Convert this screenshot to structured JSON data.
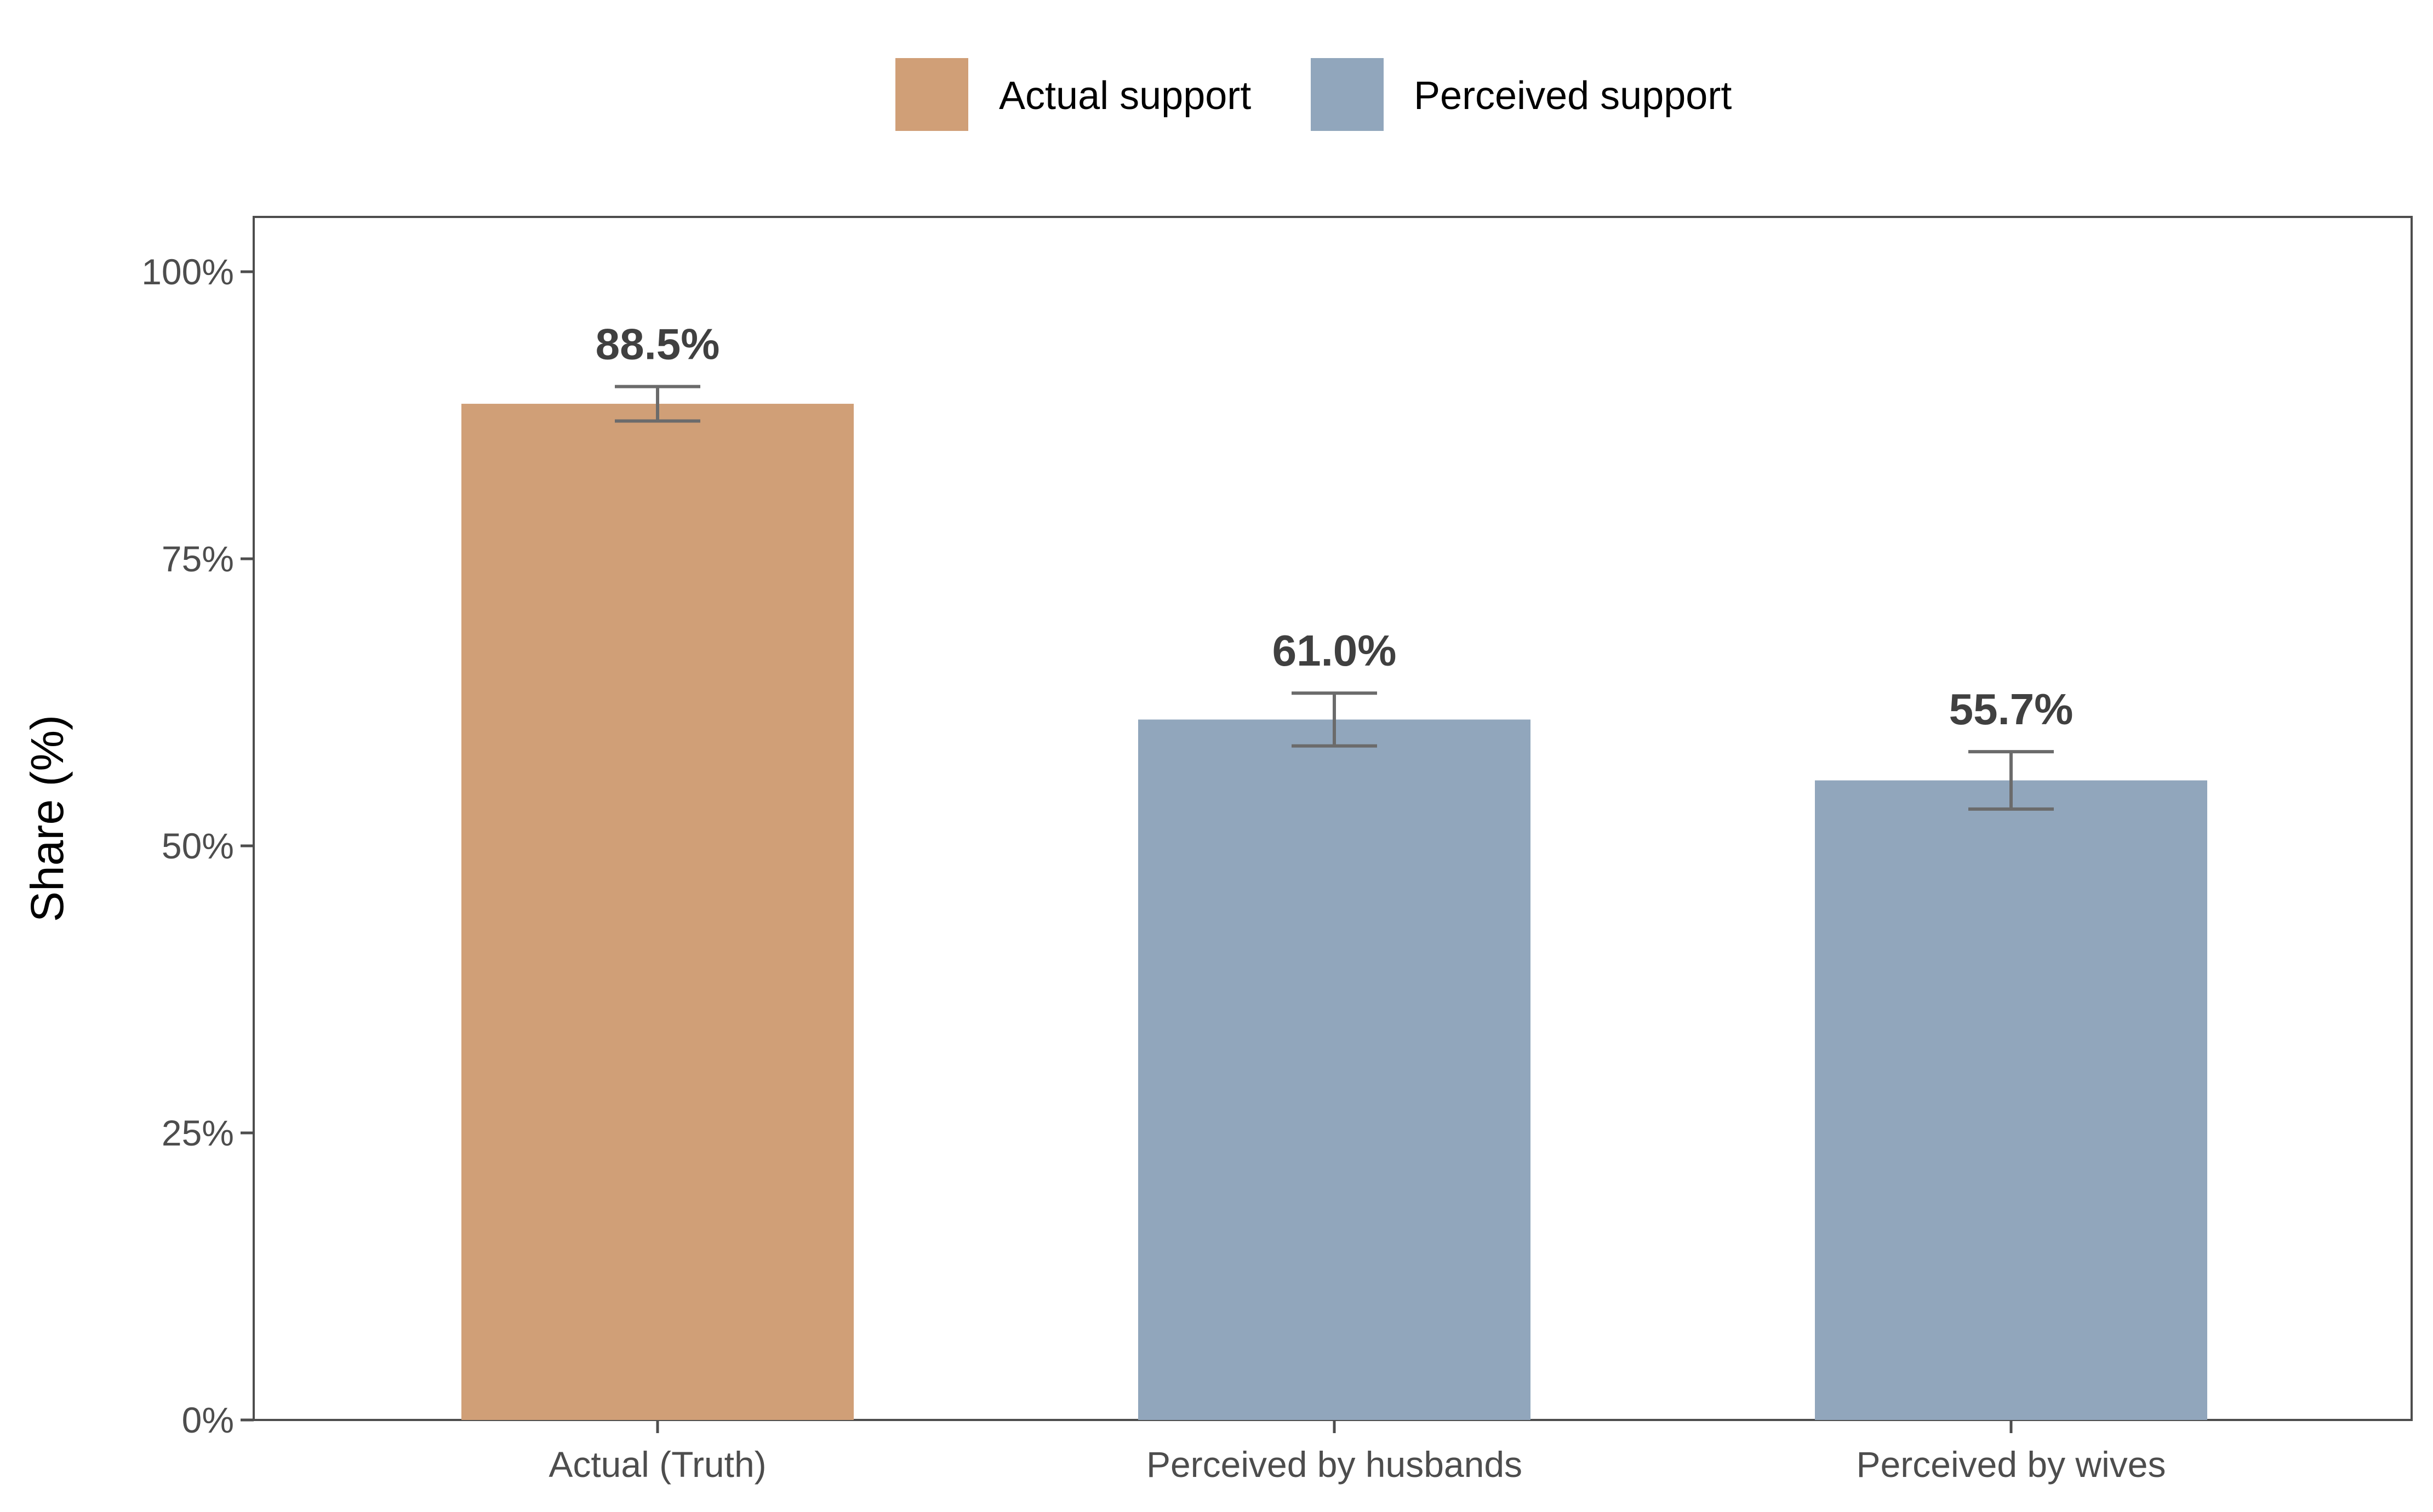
{
  "chart_data": {
    "type": "bar",
    "categories": [
      "Actual (Truth)",
      "Perceived by husbands",
      "Perceived by wives"
    ],
    "values": [
      88.5,
      61.0,
      55.7
    ],
    "error_bars": [
      {
        "low": 87.0,
        "high": 90.0
      },
      {
        "low": 58.7,
        "high": 63.3
      },
      {
        "low": 53.2,
        "high": 58.2
      }
    ],
    "data_labels": [
      "88.5%",
      "61.0%",
      "55.7%"
    ],
    "fill_groups": [
      "Actual support",
      "Perceived support",
      "Perceived support"
    ],
    "legend": {
      "position": "top",
      "entries": [
        {
          "label": "Actual support",
          "color": "#d09f77"
        },
        {
          "label": "Perceived support",
          "color": "#91a6bc"
        }
      ]
    },
    "ylabel": "Share (%)",
    "xlabel": "",
    "ylim": [
      0,
      100
    ],
    "yticks": [
      0,
      25,
      50,
      75,
      100
    ],
    "ytick_labels": [
      "0%",
      "25%",
      "50%",
      "75%",
      "100%"
    ],
    "grid": false,
    "colors": {
      "error_bar": "#6b6b6b",
      "axis": "#4d4d4d"
    }
  }
}
